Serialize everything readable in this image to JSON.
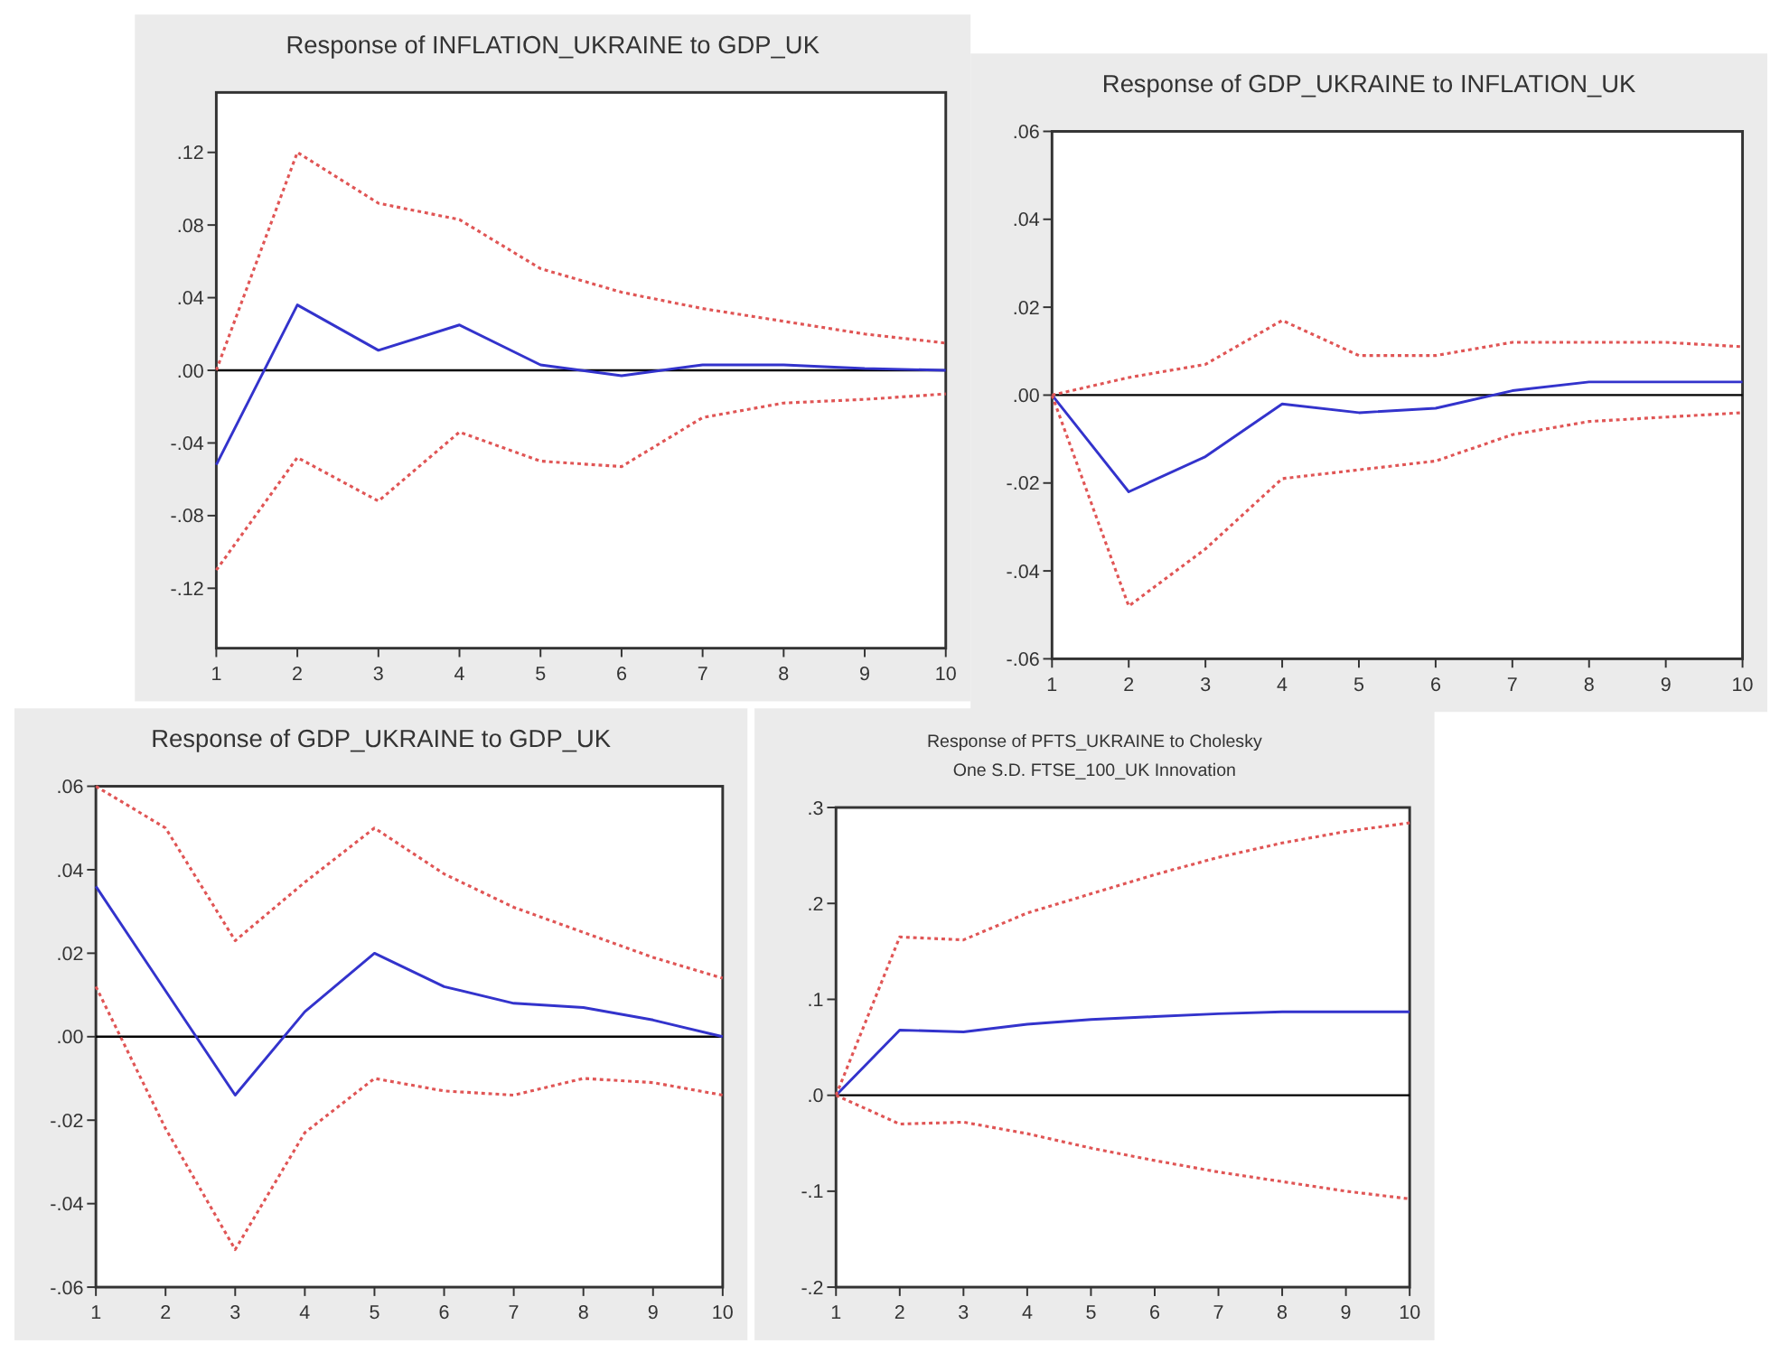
{
  "chart_data": [
    {
      "type": "line",
      "title": "Response of INFLATION_UKRAINE to GDP_UK",
      "x": [
        1,
        2,
        3,
        4,
        5,
        6,
        7,
        8,
        9,
        10
      ],
      "xlim": [
        1,
        10
      ],
      "xticks": [
        1,
        2,
        3,
        4,
        5,
        6,
        7,
        8,
        9,
        10
      ],
      "ylim": [
        -0.153,
        0.153
      ],
      "yticks": [
        {
          "value": -0.12,
          "label": "-.12"
        },
        {
          "value": -0.08,
          "label": "-.08"
        },
        {
          "value": -0.04,
          "label": "-.04"
        },
        {
          "value": 0,
          "label": ".00"
        },
        {
          "value": 0.04,
          "label": ".04"
        },
        {
          "value": 0.08,
          "label": ".08"
        },
        {
          "value": 0.12,
          "label": ".12"
        }
      ],
      "ref_lines": [
        {
          "axis": "y",
          "value": 0,
          "color": "#000000"
        }
      ],
      "series": [
        {
          "color": "#3333cc",
          "line_style": "solid",
          "values": [
            -0.052,
            0.036,
            0.011,
            0.025,
            0.003,
            -0.003,
            0.003,
            0.003,
            0.001,
            0
          ]
        },
        {
          "color": "#e05555",
          "line_style": "dotted",
          "values": [
            0,
            0.12,
            0.092,
            0.083,
            0.056,
            0.043,
            0.034,
            0.027,
            0.02,
            0.015
          ]
        },
        {
          "color": "#e05555",
          "line_style": "dotted",
          "values": [
            -0.11,
            -0.048,
            -0.072,
            -0.034,
            -0.05,
            -0.053,
            -0.026,
            -0.018,
            -0.016,
            -0.013
          ]
        }
      ]
    },
    {
      "type": "line",
      "title": "Response of GDP_UKRAINE to INFLATION_UK",
      "x": [
        1,
        2,
        3,
        4,
        5,
        6,
        7,
        8,
        9,
        10
      ],
      "xlim": [
        1,
        10
      ],
      "xticks": [
        1,
        2,
        3,
        4,
        5,
        6,
        7,
        8,
        9,
        10
      ],
      "ylim": [
        -0.06,
        0.06
      ],
      "yticks": [
        {
          "value": -0.06,
          "label": "-.06"
        },
        {
          "value": -0.04,
          "label": "-.04"
        },
        {
          "value": -0.02,
          "label": "-.02"
        },
        {
          "value": 0,
          "label": ".00"
        },
        {
          "value": 0.02,
          "label": ".02"
        },
        {
          "value": 0.04,
          "label": ".04"
        },
        {
          "value": 0.06,
          "label": ".06"
        }
      ],
      "ref_lines": [
        {
          "axis": "y",
          "value": 0,
          "color": "#000000"
        }
      ],
      "series": [
        {
          "color": "#3333cc",
          "line_style": "solid",
          "values": [
            0,
            -0.022,
            -0.014,
            -0.002,
            -0.004,
            -0.003,
            0.001,
            0.003,
            0.003,
            0.003
          ]
        },
        {
          "color": "#e05555",
          "line_style": "dotted",
          "values": [
            0,
            0.004,
            0.007,
            0.017,
            0.009,
            0.009,
            0.012,
            0.012,
            0.012,
            0.011
          ]
        },
        {
          "color": "#e05555",
          "line_style": "dotted",
          "values": [
            0,
            -0.048,
            -0.035,
            -0.019,
            -0.017,
            -0.015,
            -0.009,
            -0.006,
            -0.005,
            -0.004
          ]
        }
      ]
    },
    {
      "type": "line",
      "title": "Response of GDP_UKRAINE to GDP_UK",
      "x": [
        1,
        2,
        3,
        4,
        5,
        6,
        7,
        8,
        9,
        10
      ],
      "xlim": [
        1,
        10
      ],
      "xticks": [
        1,
        2,
        3,
        4,
        5,
        6,
        7,
        8,
        9,
        10
      ],
      "ylim": [
        -0.06,
        0.06
      ],
      "yticks": [
        {
          "value": -0.06,
          "label": "-.06"
        },
        {
          "value": -0.04,
          "label": "-.04"
        },
        {
          "value": -0.02,
          "label": "-.02"
        },
        {
          "value": 0,
          "label": ".00"
        },
        {
          "value": 0.02,
          "label": ".02"
        },
        {
          "value": 0.04,
          "label": ".04"
        },
        {
          "value": 0.06,
          "label": ".06"
        }
      ],
      "ref_lines": [
        {
          "axis": "y",
          "value": 0,
          "color": "#000000"
        }
      ],
      "series": [
        {
          "color": "#3333cc",
          "line_style": "solid",
          "values": [
            0.036,
            0.011,
            -0.014,
            0.006,
            0.02,
            0.012,
            0.008,
            0.007,
            0.004,
            0
          ]
        },
        {
          "color": "#e05555",
          "line_style": "dotted",
          "values": [
            0.06,
            0.05,
            0.023,
            0.037,
            0.05,
            0.039,
            0.031,
            0.025,
            0.019,
            0.014
          ]
        },
        {
          "color": "#e05555",
          "line_style": "dotted",
          "values": [
            0.012,
            -0.022,
            -0.051,
            -0.023,
            -0.01,
            -0.013,
            -0.014,
            -0.01,
            -0.011,
            -0.014
          ]
        }
      ]
    },
    {
      "type": "line",
      "title": "Response of PFTS_UKRAINE to Cholesky",
      "subtitle": "One S.D. FTSE_100_UK Innovation",
      "x": [
        1,
        2,
        3,
        4,
        5,
        6,
        7,
        8,
        9,
        10
      ],
      "xlim": [
        1,
        10
      ],
      "xticks": [
        1,
        2,
        3,
        4,
        5,
        6,
        7,
        8,
        9,
        10
      ],
      "ylim": [
        -0.2,
        0.3
      ],
      "yticks": [
        {
          "value": -0.2,
          "label": "-.2"
        },
        {
          "value": -0.1,
          "label": "-.1"
        },
        {
          "value": 0,
          "label": ".0"
        },
        {
          "value": 0.1,
          "label": ".1"
        },
        {
          "value": 0.2,
          "label": ".2"
        },
        {
          "value": 0.3,
          "label": ".3"
        }
      ],
      "ref_lines": [
        {
          "axis": "y",
          "value": 0,
          "color": "#000000"
        }
      ],
      "series": [
        {
          "color": "#3333cc",
          "line_style": "solid",
          "values": [
            0,
            0.068,
            0.066,
            0.074,
            0.079,
            0.082,
            0.085,
            0.087,
            0.087,
            0.087
          ]
        },
        {
          "color": "#e05555",
          "line_style": "dotted",
          "values": [
            0,
            0.165,
            0.162,
            0.19,
            0.21,
            0.23,
            0.248,
            0.263,
            0.275,
            0.284
          ]
        },
        {
          "color": "#e05555",
          "line_style": "dotted",
          "values": [
            0,
            -0.03,
            -0.028,
            -0.04,
            -0.055,
            -0.068,
            -0.08,
            -0.09,
            -0.1,
            -0.108
          ]
        }
      ]
    }
  ]
}
